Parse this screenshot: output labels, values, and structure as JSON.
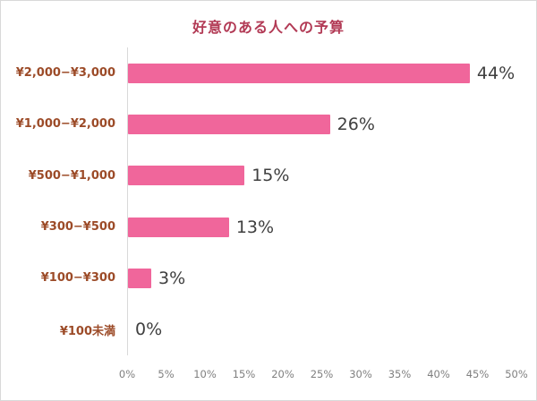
{
  "chart_data": {
    "type": "bar",
    "orientation": "horizontal",
    "title": "好意のある人への予算",
    "categories": [
      "¥2,000−¥3,000",
      "¥1,000−¥2,000",
      "¥500−¥1,000",
      "¥300−¥500",
      "¥100−¥300",
      "¥100未満"
    ],
    "values": [
      44,
      26,
      15,
      13,
      3,
      0
    ],
    "value_labels": [
      "44%",
      "26%",
      "15%",
      "13%",
      "3%",
      "0%"
    ],
    "xlabel": "",
    "ylabel": "",
    "xlim": [
      0,
      50
    ],
    "x_ticks": [
      "0%",
      "5%",
      "10%",
      "15%",
      "20%",
      "25%",
      "30%",
      "35%",
      "40%",
      "45%",
      "50%"
    ],
    "grid": false,
    "legend": false,
    "colors": {
      "bar": "#f0669b",
      "title": "#b23a55",
      "category_label": "#9c4b28",
      "value_label": "#3f3f3f",
      "tick_label": "#7f7f7f",
      "axis_line": "#d9d9d9"
    }
  }
}
